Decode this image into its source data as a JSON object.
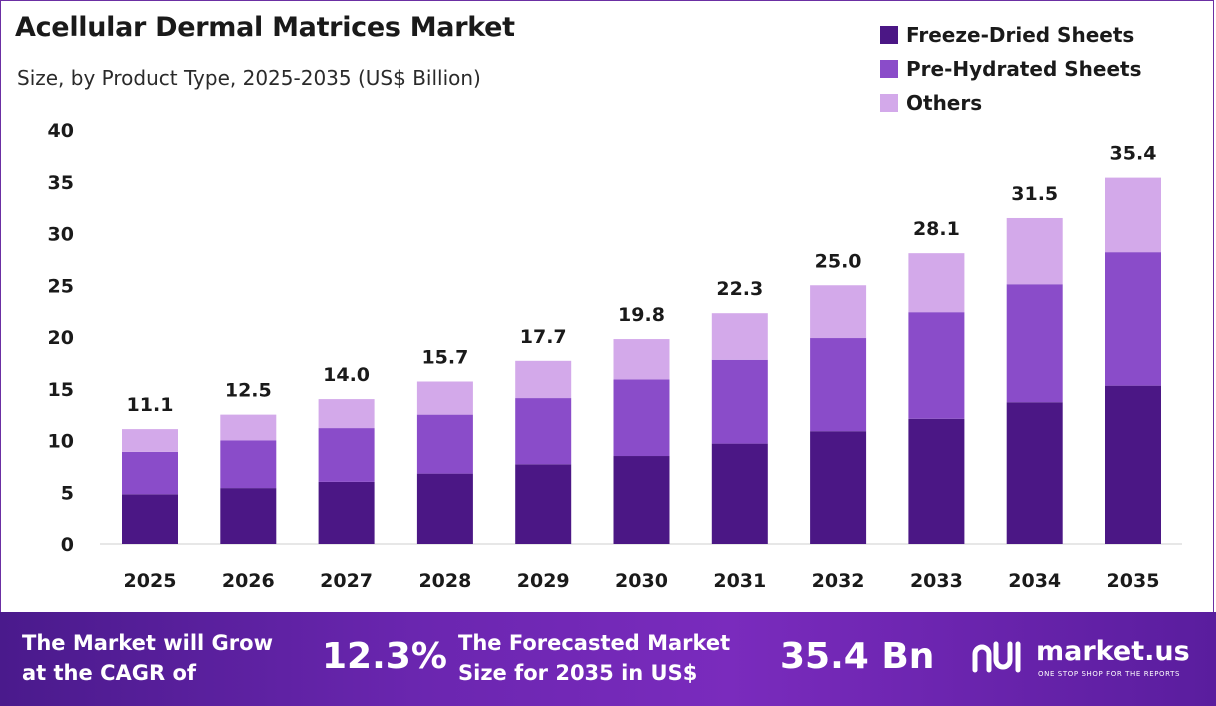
{
  "header": {
    "title": "Acellular Dermal Matrices Market",
    "subtitle": "Size, by Product Type, 2025-2035 (US$ Billion)"
  },
  "colors": {
    "freeze_dried": "#4b1785",
    "pre_hydrated": "#8a4cc9",
    "others": "#d3a9ea",
    "footer": "#6b26b0"
  },
  "chart_data": {
    "type": "bar",
    "stacked": true,
    "categories": [
      "2025",
      "2026",
      "2027",
      "2028",
      "2029",
      "2030",
      "2031",
      "2032",
      "2033",
      "2034",
      "2035"
    ],
    "series": [
      {
        "name": "Freeze-Dried Sheets",
        "values": [
          4.8,
          5.4,
          6.0,
          6.8,
          7.7,
          8.5,
          9.7,
          10.9,
          12.1,
          13.7,
          15.3
        ]
      },
      {
        "name": "Pre-Hydrated Sheets",
        "values": [
          4.1,
          4.6,
          5.2,
          5.7,
          6.4,
          7.4,
          8.1,
          9.0,
          10.3,
          11.4,
          12.9
        ]
      },
      {
        "name": "Others",
        "values": [
          2.2,
          2.5,
          2.8,
          3.2,
          3.6,
          3.9,
          4.5,
          5.1,
          5.7,
          6.4,
          7.2
        ]
      }
    ],
    "totals": [
      "11.1",
      "12.5",
      "14.0",
      "15.7",
      "17.7",
      "19.8",
      "22.3",
      "25.0",
      "28.1",
      "31.5",
      "35.4"
    ],
    "ylim": [
      0,
      40
    ],
    "yticks": [
      "0",
      "5",
      "10",
      "15",
      "20",
      "25",
      "30",
      "35",
      "40"
    ],
    "legend_position": "top-right",
    "grid": false
  },
  "footer": {
    "cagr_label_line1": "The Market will Grow",
    "cagr_label_line2": "at the CAGR of",
    "cagr_value": "12.3%",
    "forecast_label_line1": "The Forecasted Market",
    "forecast_label_line2": "Size for 2035 in US$",
    "forecast_value": "35.4 Bn",
    "brand_name": "market.us",
    "brand_tagline": "ONE STOP SHOP FOR THE REPORTS",
    "brand_icon": "market-us-logo-icon"
  }
}
